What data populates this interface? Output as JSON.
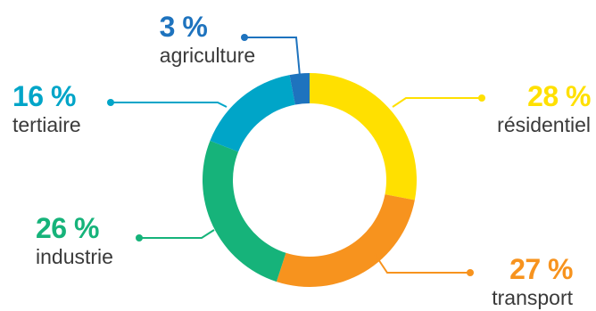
{
  "chart_data": {
    "type": "pie",
    "style": "donut",
    "title": "",
    "unit": "%",
    "slices": [
      {
        "label": "résidentiel",
        "value": 28,
        "display": "28 %",
        "color": "#FFE000"
      },
      {
        "label": "transport",
        "value": 27,
        "display": "27 %",
        "color": "#F7931E"
      },
      {
        "label": "industrie",
        "value": 26,
        "display": "26 %",
        "color": "#16B37A"
      },
      {
        "label": "tertiaire",
        "value": 16,
        "display": "16 %",
        "color": "#00A5C8"
      },
      {
        "label": "agriculture",
        "value": 3,
        "display": "3 %",
        "color": "#1E73BE"
      }
    ],
    "legend": "none"
  }
}
